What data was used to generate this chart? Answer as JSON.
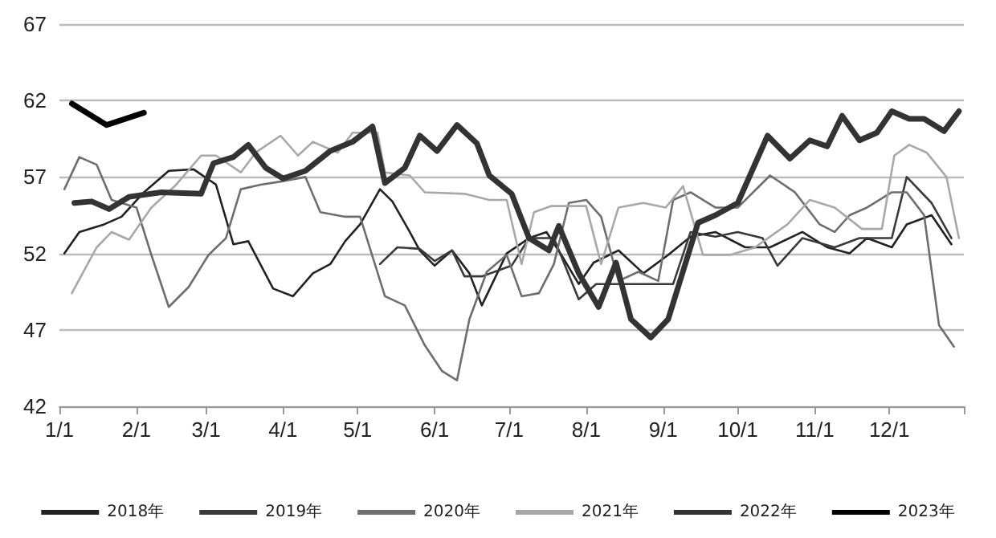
{
  "chart_data": {
    "type": "line",
    "ylim": [
      42,
      67
    ],
    "yticks": [
      42,
      47,
      52,
      57,
      62,
      67
    ],
    "xlim": [
      "--01-01",
      "--12-31"
    ],
    "xticks": [
      {
        "value": "--01-01",
        "label": "1/1"
      },
      {
        "value": "--02-01",
        "label": "2/1"
      },
      {
        "value": "--03-01",
        "label": "3/1"
      },
      {
        "value": "--04-01",
        "label": "4/1"
      },
      {
        "value": "--05-01",
        "label": "5/1"
      },
      {
        "value": "--06-01",
        "label": "6/1"
      },
      {
        "value": "--07-01",
        "label": "7/1"
      },
      {
        "value": "--08-01",
        "label": "8/1"
      },
      {
        "value": "--09-01",
        "label": "9/1"
      },
      {
        "value": "--10-01",
        "label": "10/1"
      },
      {
        "value": "--11-01",
        "label": "11/1"
      },
      {
        "value": "--12-01",
        "label": "12/1"
      }
    ],
    "grid": "y",
    "legend": "bottom",
    "marker": "none",
    "line_style": "solid",
    "series": [
      {
        "name": "2018年",
        "color": "#222222",
        "x": [
          "--01-03",
          "--01-09",
          "--01-19",
          "--01-26",
          "--02-04",
          "--02-14",
          "--02-24",
          "--03-05",
          "--03-12",
          "--03-18",
          "--03-28",
          "--04-05",
          "--04-13",
          "--04-20",
          "--04-26",
          "--05-02",
          "--05-10",
          "--05-15",
          "--05-22",
          "--05-26",
          "--06-01",
          "--06-08",
          "--06-15",
          "--06-20",
          "--06-30",
          "--07-09",
          "--07-16",
          "--07-22",
          "--07-29",
          "--08-04",
          "--08-14",
          "--08-24",
          "--09-03",
          "--09-12",
          "--09-22",
          "--10-04",
          "--10-14",
          "--10-27",
          "--11-06",
          "--11-15",
          "--11-22",
          "--12-02",
          "--12-08",
          "--12-18",
          "--12-26"
        ],
        "values": [
          52,
          53.4,
          53.9,
          54.4,
          56,
          57.4,
          57.5,
          56.5,
          52.6,
          52.8,
          49.7,
          49.2,
          50.7,
          51.3,
          52.8,
          53.9,
          56.2,
          55.4,
          53.4,
          52.2,
          51.2,
          52.2,
          50.7,
          48.6,
          52,
          53,
          53.4,
          51.9,
          50,
          51.4,
          52.2,
          50.7,
          51.9,
          53.1,
          53.4,
          52.4,
          52.4,
          53.4,
          52.4,
          52,
          53,
          52.4,
          53.9,
          54.5,
          52.6
        ]
      },
      {
        "name": "2019年",
        "color": "#3a3a3a",
        "x": [
          "--05-10",
          "--05-17",
          "--05-26",
          "--06-01",
          "--06-08",
          "--06-13",
          "--06-20",
          "--07-02",
          "--07-09",
          "--07-19",
          "--07-29",
          "--08-05",
          "--08-14",
          "--08-24",
          "--08-30",
          "--09-05",
          "--09-12",
          "--09-22",
          "--10-01",
          "--10-11",
          "--10-17",
          "--10-27",
          "--11-09",
          "--11-19",
          "--12-02",
          "--12-08",
          "--12-18",
          "--12-26"
        ],
        "values": [
          51.3,
          52.4,
          52.3,
          51.5,
          52.2,
          50.5,
          50.5,
          51.2,
          53,
          53,
          49,
          50,
          50,
          50,
          50,
          50,
          53.4,
          53.1,
          53.4,
          53,
          51.2,
          53,
          52.4,
          53,
          53,
          57,
          55.3,
          53
        ]
      },
      {
        "name": "2020年",
        "color": "#6e6e6e",
        "x": [
          "--01-03",
          "--01-09",
          "--01-16",
          "--01-22",
          "--02-01",
          "--02-07",
          "--02-14",
          "--02-22",
          "--03-02",
          "--03-09",
          "--03-15",
          "--03-23",
          "--03-31",
          "--04-10",
          "--04-16",
          "--04-26",
          "--05-02",
          "--05-12",
          "--05-20",
          "--05-28",
          "--06-04",
          "--06-10",
          "--06-15",
          "--06-22",
          "--06-30",
          "--07-06",
          "--07-13",
          "--07-19",
          "--07-25",
          "--08-01",
          "--08-07",
          "--08-14",
          "--08-22",
          "--08-30",
          "--09-05",
          "--09-12",
          "--09-22",
          "--10-01",
          "--10-14",
          "--10-24",
          "--11-03",
          "--11-09",
          "--11-15",
          "--11-22",
          "--12-02",
          "--12-08",
          "--12-15",
          "--12-21",
          "--12-27"
        ],
        "values": [
          56.2,
          58.3,
          57.8,
          55.5,
          55,
          51.9,
          48.5,
          49.8,
          51.9,
          53,
          56.2,
          56.5,
          56.7,
          57,
          54.7,
          54.4,
          54.4,
          49.2,
          48.6,
          46,
          44.3,
          43.7,
          47.7,
          50.8,
          51.9,
          49.2,
          49.4,
          51.3,
          55.3,
          55.5,
          54.4,
          50.2,
          50.8,
          50.2,
          55.5,
          56,
          55,
          55,
          57.1,
          56,
          53.9,
          53.4,
          54.5,
          55,
          56,
          56,
          54.5,
          47.3,
          45.9
        ]
      },
      {
        "name": "2021年",
        "color": "#a8a8a8",
        "x": [
          "--01-06",
          "--01-16",
          "--01-22",
          "--01-29",
          "--02-07",
          "--02-17",
          "--02-27",
          "--03-05",
          "--03-15",
          "--03-21",
          "--03-31",
          "--04-07",
          "--04-13",
          "--04-23",
          "--04-29",
          "--05-09",
          "--05-12",
          "--05-22",
          "--05-28",
          "--06-13",
          "--06-23",
          "--06-30",
          "--07-06",
          "--07-11",
          "--07-18",
          "--07-23",
          "--08-01",
          "--08-07",
          "--08-14",
          "--08-24",
          "--09-02",
          "--09-09",
          "--09-17",
          "--09-28",
          "--10-08",
          "--10-21",
          "--10-30",
          "--11-09",
          "--11-20",
          "--11-28",
          "--12-03",
          "--12-09",
          "--12-16",
          "--12-24",
          "--12-29"
        ],
        "values": [
          49.4,
          52.4,
          53.4,
          52.9,
          55,
          56.5,
          58.4,
          58.4,
          57.3,
          58.6,
          59.7,
          58.4,
          59.3,
          58.6,
          59.9,
          59.9,
          57.3,
          57.1,
          56,
          55.9,
          55.5,
          55.5,
          51.3,
          54.7,
          55.1,
          55.1,
          55.1,
          51.3,
          55,
          55.3,
          55,
          56.4,
          51.9,
          51.9,
          52.4,
          53.9,
          55.5,
          55,
          53.6,
          53.6,
          58.4,
          59.1,
          58.6,
          57,
          53
        ]
      },
      {
        "name": "2022年",
        "color": "#333333",
        "x": [
          "--01-07",
          "--01-14",
          "--01-21",
          "--01-29",
          "--02-11",
          "--02-27",
          "--03-04",
          "--03-12",
          "--03-18",
          "--03-25",
          "--04-01",
          "--04-10",
          "--04-20",
          "--04-29",
          "--05-07",
          "--05-12",
          "--05-20",
          "--05-26",
          "--06-02",
          "--06-10",
          "--06-18",
          "--06-23",
          "--07-02",
          "--07-09",
          "--07-17",
          "--07-21",
          "--07-29",
          "--08-06",
          "--08-13",
          "--08-19",
          "--08-27",
          "--09-03",
          "--09-15",
          "--09-22",
          "--10-01",
          "--10-13",
          "--10-22",
          "--10-30",
          "--11-06",
          "--11-12",
          "--11-19",
          "--11-26",
          "--12-02",
          "--12-09",
          "--12-15",
          "--12-23",
          "--12-29"
        ],
        "values": [
          55.3,
          55.4,
          54.9,
          55.7,
          56,
          55.9,
          57.9,
          58.3,
          59.1,
          57.6,
          56.9,
          57.4,
          58.7,
          59.3,
          60.3,
          56.6,
          57.6,
          59.7,
          58.7,
          60.4,
          59.2,
          57.1,
          55.9,
          53,
          52.2,
          53.8,
          50.7,
          48.5,
          51.4,
          47.7,
          46.5,
          47.7,
          54,
          54.5,
          55.3,
          59.7,
          58.2,
          59.4,
          59,
          61,
          59.4,
          59.9,
          61.3,
          60.8,
          60.8,
          60,
          61.3
        ]
      },
      {
        "name": "2023年",
        "color": "#000000",
        "x": [
          "--01-06",
          "--01-20",
          "--02-04"
        ],
        "values": [
          61.8,
          60.4,
          61.2
        ]
      }
    ]
  }
}
